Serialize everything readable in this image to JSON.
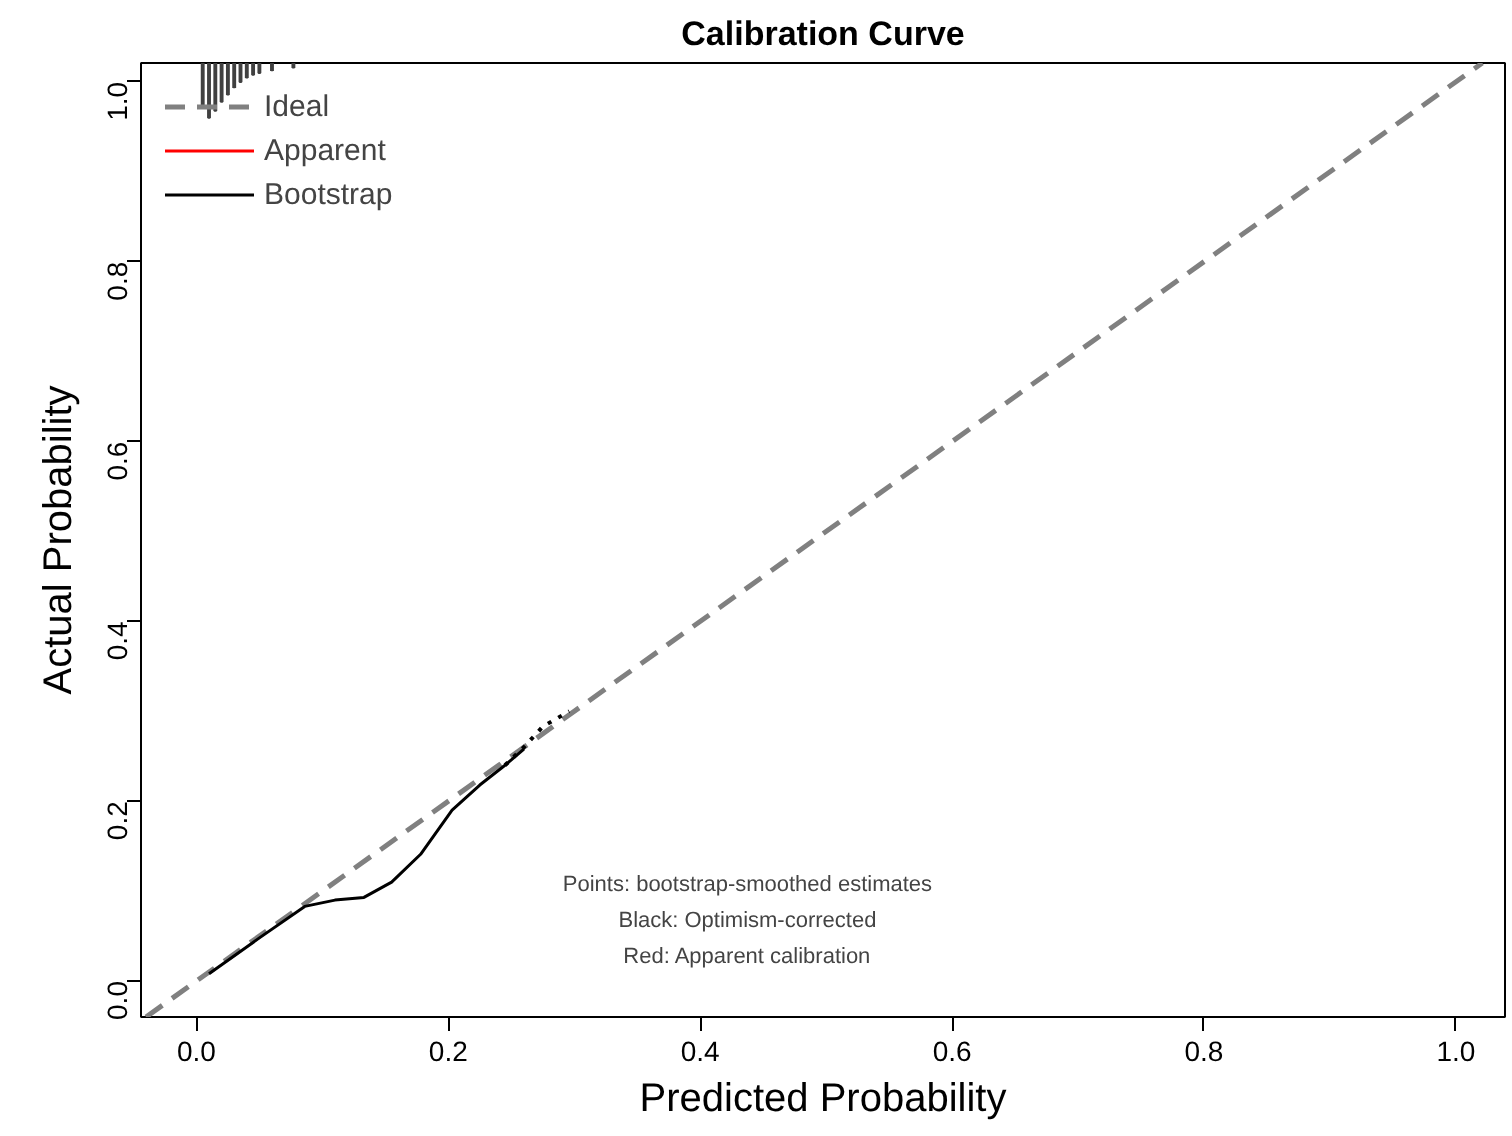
{
  "chart_data": {
    "type": "line",
    "title": "Calibration Curve",
    "xlabel": "Predicted Probability",
    "ylabel": "Actual Probability",
    "xlim": [
      -0.044,
      1.039
    ],
    "ylim": [
      -0.04,
      1.021
    ],
    "xticks": [
      {
        "value": 0,
        "label": "0.0"
      },
      0.2,
      0.4,
      0.6,
      0.8,
      {
        "value": 1,
        "label": "1.0"
      }
    ],
    "yticks": [
      {
        "value": 0,
        "label": "0.0"
      },
      0.2,
      0.4,
      0.6,
      0.8,
      {
        "value": 1,
        "label": "1.0"
      }
    ],
    "grid": false,
    "legend": "top left",
    "marker": "none",
    "series": [
      {
        "name": "Ideal",
        "color": "#808080",
        "line_style": "dashed",
        "x": [
          -0.04,
          1.021
        ],
        "values": [
          -0.04,
          1.021
        ]
      },
      {
        "name": "Apparent",
        "color": "#ff0000",
        "line_style": "solid",
        "x": [
          null
        ],
        "values": [
          null
        ]
      },
      {
        "name": "Bootstrap",
        "color": "#000000",
        "line_style": "solid",
        "x": [
          0.01,
          0.05,
          0.086,
          0.11,
          0.133,
          0.155,
          0.178,
          0.203,
          0.225,
          0.245,
          0.26
        ],
        "values": [
          0.008,
          0.048,
          0.083,
          0.09,
          0.093,
          0.11,
          0.141,
          0.19,
          0.218,
          0.24,
          0.258
        ]
      },
      {
        "color": "#000000",
        "line_style": "dotted",
        "x": [
          0.245,
          0.26,
          0.275,
          0.296
        ],
        "values": [
          0.24,
          0.26,
          0.283,
          0.3
        ]
      },
      {
        "type": "bar",
        "color": "#404040",
        "x": [
          0.005,
          0.01,
          0.015,
          0.02,
          0.025,
          0.03,
          0.035,
          0.04,
          0.045,
          0.05,
          0.06,
          0.077
        ],
        "base": [
          1.021,
          1.021,
          1.021,
          1.021,
          1.021,
          1.021,
          1.021,
          1.021,
          1.021,
          1.021,
          1.021,
          1.021
        ],
        "values": [
          -0.048,
          -0.061,
          -0.053,
          -0.043,
          -0.035,
          -0.027,
          -0.021,
          -0.016,
          -0.013,
          -0.011,
          -0.008,
          -0.005
        ]
      }
    ],
    "annotations": [
      "Points: bootstrap-smoothed estimates",
      "Black: Optimism-corrected",
      "Red: Apparent calibration"
    ]
  }
}
